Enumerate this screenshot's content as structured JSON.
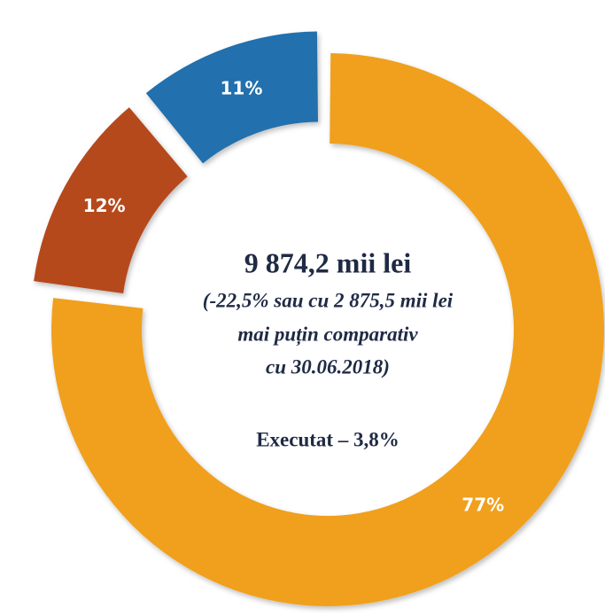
{
  "chart_data": {
    "type": "pie",
    "values": [
      77,
      12,
      11
    ],
    "value_labels": [
      "77%",
      "12%",
      "11%"
    ],
    "colors": [
      "#f0a01e",
      "#b5481a",
      "#2170ad"
    ],
    "annotations": [
      "9 874,2 mii lei",
      "(-22,5% sau cu 2 875,5 mii lei",
      "mai puțin comparativ",
      "cu 30.06.2018)",
      "Executat – 3,8%"
    ]
  }
}
